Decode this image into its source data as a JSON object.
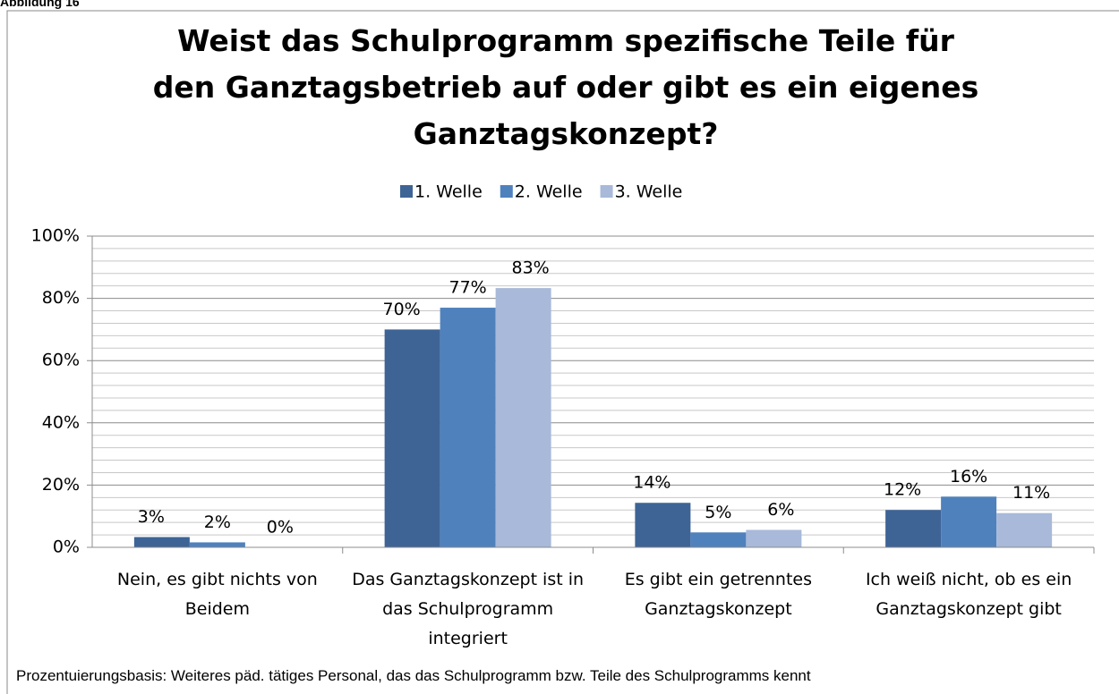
{
  "header": "Abbildung 16",
  "chart_data": {
    "type": "bar",
    "title": "Weist das Schulprogramm spezifische Teile für den Ganztagsbetrieb auf oder gibt es ein eigenes Ganztagskonzept?",
    "categories": [
      "Nein, es gibt nichts von Beidem",
      "Das Ganztagskonzept ist in das Schulprogramm integriert",
      "Es gibt ein getrenntes Ganztagskonzept",
      "Ich weiß nicht, ob es ein Ganztagskonzept gibt"
    ],
    "series": [
      {
        "name": "1. Welle",
        "color": "#3e6496",
        "values": [
          3.3,
          70,
          14.3,
          12
        ],
        "value_labels": [
          "3%",
          "70%",
          "14%",
          "12%"
        ]
      },
      {
        "name": "2. Welle",
        "color": "#4f81bd",
        "values": [
          1.6,
          77,
          4.8,
          16.3
        ],
        "value_labels": [
          "2%",
          "77%",
          "5%",
          "16%"
        ]
      },
      {
        "name": "3. Welle",
        "color": "#a8b9d9",
        "values": [
          0,
          83.3,
          5.6,
          11
        ],
        "value_labels": [
          "0%",
          "83%",
          "6%",
          "11%"
        ]
      }
    ],
    "ylim": [
      0,
      100
    ],
    "yticks": [
      {
        "value": 0,
        "label": "0%"
      },
      {
        "value": 20,
        "label": "20%"
      },
      {
        "value": 40,
        "label": "40%"
      },
      {
        "value": 60,
        "label": "60%"
      },
      {
        "value": 80,
        "label": "80%"
      },
      {
        "value": 100,
        "label": "100%"
      }
    ],
    "minor_yticks": [
      4,
      8,
      12,
      16,
      24,
      28,
      32,
      36,
      44,
      48,
      52,
      56,
      64,
      68,
      72,
      76,
      84,
      88,
      92,
      96
    ],
    "grid": true,
    "legend": "top",
    "footnote": "Prozentuierungsbasis: Weiteres päd. tätiges Personal, das das Schulprogramm bzw. Teile des Schulprogramms kennt"
  }
}
